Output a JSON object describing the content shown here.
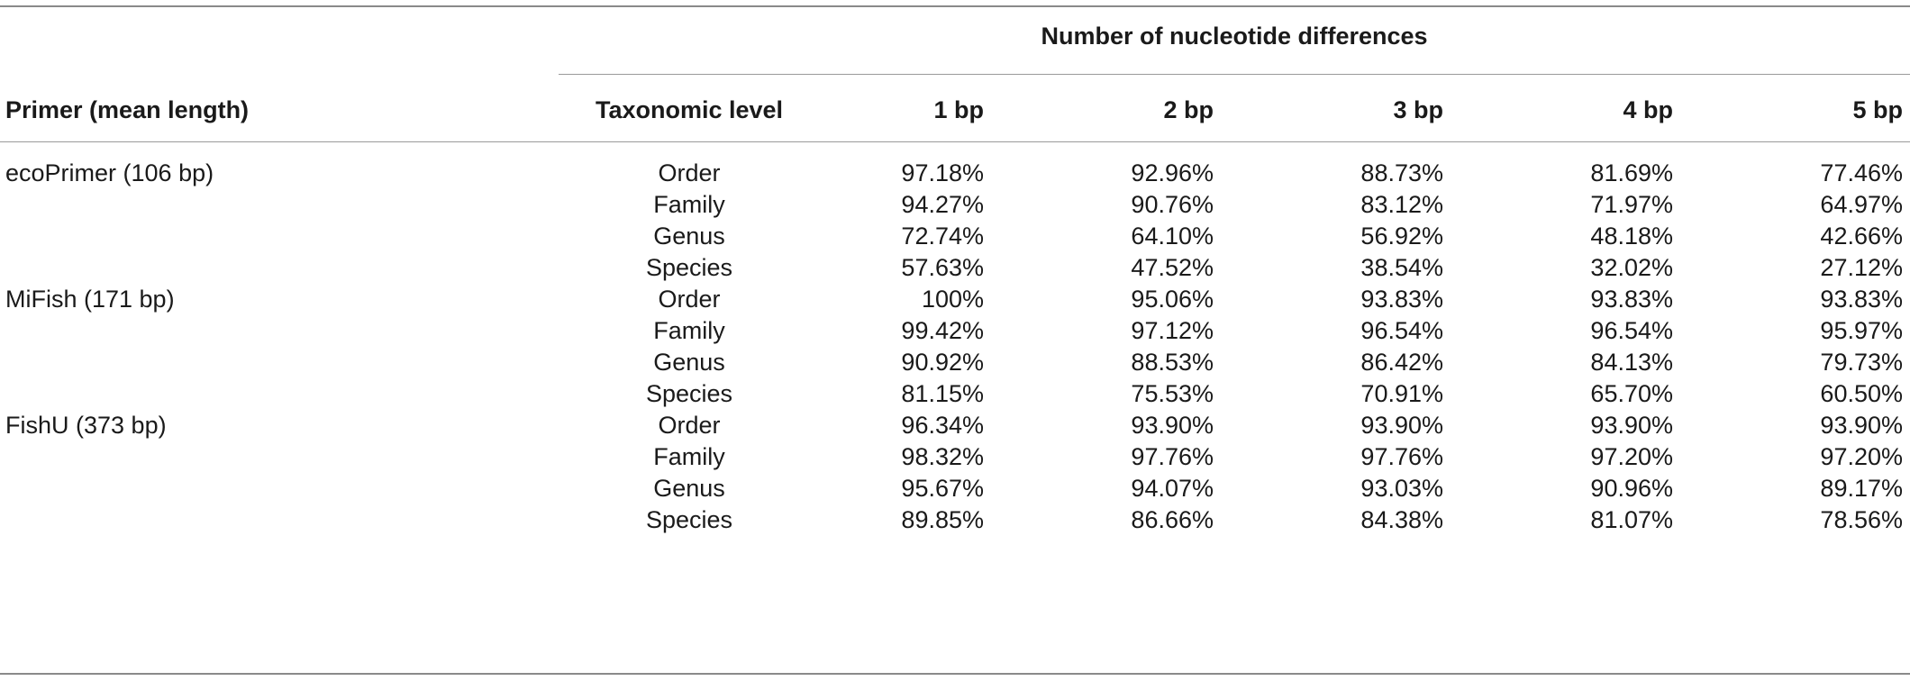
{
  "table": {
    "group_header": "Number of nucleotide differences",
    "columns": [
      "Primer (mean length)",
      "Taxonomic level",
      "1 bp",
      "2 bp",
      "3 bp",
      "4 bp",
      "5 bp"
    ],
    "rows": [
      {
        "primer": "ecoPrimer (106 bp)",
        "level": "Order",
        "values": [
          "97.18%",
          "92.96%",
          "88.73%",
          "81.69%",
          "77.46%"
        ]
      },
      {
        "primer": "",
        "level": "Family",
        "values": [
          "94.27%",
          "90.76%",
          "83.12%",
          "71.97%",
          "64.97%"
        ]
      },
      {
        "primer": "",
        "level": "Genus",
        "values": [
          "72.74%",
          "64.10%",
          "56.92%",
          "48.18%",
          "42.66%"
        ]
      },
      {
        "primer": "",
        "level": "Species",
        "values": [
          "57.63%",
          "47.52%",
          "38.54%",
          "32.02%",
          "27.12%"
        ]
      },
      {
        "primer": "MiFish (171 bp)",
        "level": "Order",
        "values": [
          "100%",
          "95.06%",
          "93.83%",
          "93.83%",
          "93.83%"
        ]
      },
      {
        "primer": "",
        "level": "Family",
        "values": [
          "99.42%",
          "97.12%",
          "96.54%",
          "96.54%",
          "95.97%"
        ]
      },
      {
        "primer": "",
        "level": "Genus",
        "values": [
          "90.92%",
          "88.53%",
          "86.42%",
          "84.13%",
          "79.73%"
        ]
      },
      {
        "primer": "",
        "level": "Species",
        "values": [
          "81.15%",
          "75.53%",
          "70.91%",
          "65.70%",
          "60.50%"
        ]
      },
      {
        "primer": "FishU (373 bp)",
        "level": "Order",
        "values": [
          "96.34%",
          "93.90%",
          "93.90%",
          "93.90%",
          "93.90%"
        ]
      },
      {
        "primer": "",
        "level": "Family",
        "values": [
          "98.32%",
          "97.76%",
          "97.76%",
          "97.20%",
          "97.20%"
        ]
      },
      {
        "primer": "",
        "level": "Genus",
        "values": [
          "95.67%",
          "94.07%",
          "93.03%",
          "90.96%",
          "89.17%"
        ]
      },
      {
        "primer": "",
        "level": "Species",
        "values": [
          "89.85%",
          "86.66%",
          "84.38%",
          "81.07%",
          "78.56%"
        ]
      }
    ]
  }
}
